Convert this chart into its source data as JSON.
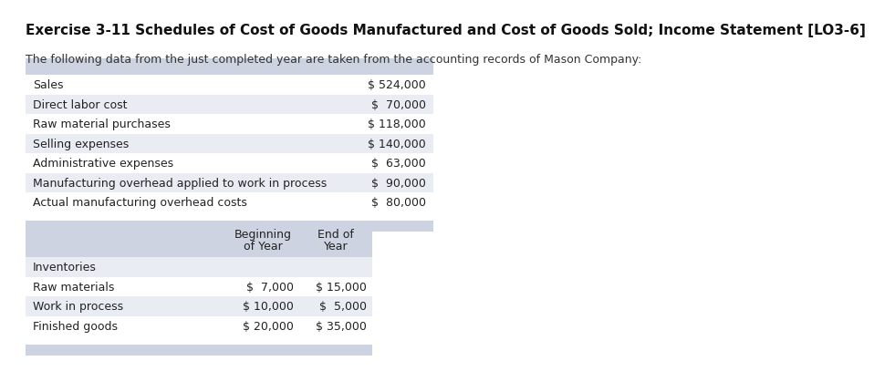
{
  "title": "Exercise 3-11 Schedules of Cost of Goods Manufactured and Cost of Goods Sold; Income Statement [LO3-6]",
  "subtitle": "The following data from the just completed year are taken from the accounting records of Mason Company:",
  "table1": {
    "rows": [
      [
        "Sales",
        "$ 524,000"
      ],
      [
        "Direct labor cost",
        "$  70,000"
      ],
      [
        "Raw material purchases",
        "$ 118,000"
      ],
      [
        "Selling expenses",
        "$ 140,000"
      ],
      [
        "Administrative expenses",
        "$  63,000"
      ],
      [
        "Manufacturing overhead applied to work in process",
        "$  90,000"
      ],
      [
        "Actual manufacturing overhead costs",
        "$  80,000"
      ]
    ],
    "header_color": "#cdd3e0",
    "row_colors": [
      "#ffffff",
      "#eaecf4",
      "#ffffff",
      "#eaecf4",
      "#ffffff",
      "#eaecf4",
      "#ffffff"
    ],
    "footer_color": "#cdd3e0"
  },
  "table2": {
    "col_headers": [
      "Beginning\nof Year",
      "End of\nYear"
    ],
    "rows": [
      [
        "Inventories",
        "",
        ""
      ],
      [
        "Raw materials",
        "$  7,000",
        "$ 15,000"
      ],
      [
        "Work in process",
        "$ 10,000",
        "$  5,000"
      ],
      [
        "Finished goods",
        "$ 20,000",
        "$ 35,000"
      ]
    ],
    "header_color": "#cdd3e0",
    "row_colors": [
      "#eaecf4",
      "#ffffff",
      "#eaecf4",
      "#ffffff"
    ],
    "footer_color": "#cdd3e0"
  },
  "bg_color": "#ffffff",
  "title_fontsize": 11,
  "subtitle_fontsize": 9,
  "table_fontsize": 9
}
